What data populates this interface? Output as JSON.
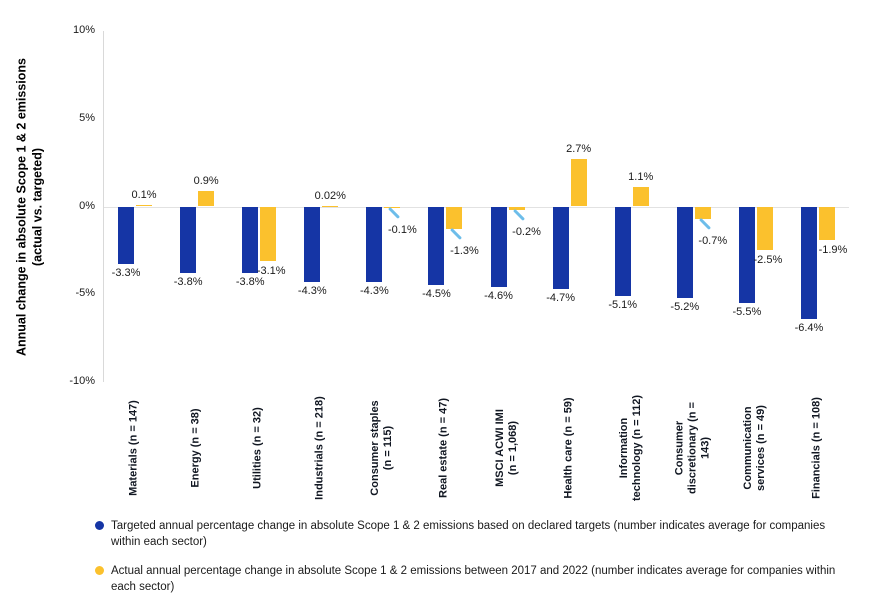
{
  "chart_data": {
    "type": "bar",
    "title": "",
    "xlabel": "",
    "ylabel": "Annual change in absolute Scope 1 & 2 emissions (actual vs. targeted)",
    "y_axis_title_lines": [
      "Annual change in absolute Scope 1 & 2 emissions",
      "(actual vs. targeted)"
    ],
    "ylim": [
      -10,
      10
    ],
    "grid": "zero-line-only",
    "legend_position": "bottom-left",
    "yticks": [
      {
        "value": 10,
        "label": "10%"
      },
      {
        "value": 5,
        "label": "5%"
      },
      {
        "value": 0,
        "label": "0%"
      },
      {
        "value": -5,
        "label": "-5%"
      },
      {
        "value": -10,
        "label": "-10%"
      }
    ],
    "series": [
      {
        "name": "Targeted",
        "color": "#1535A5"
      },
      {
        "name": "Actual",
        "color": "#FBC12D"
      }
    ],
    "colors": {
      "targeted": "#1535A5",
      "actual": "#FBC12D",
      "callout_line": "#6DBDEA",
      "axis": "#D9D9D9",
      "text": "#1A1A1A"
    },
    "categories": [
      {
        "label_lines": [
          "Materials (n = 147)"
        ],
        "targeted": -3.3,
        "targeted_label": "-3.3%",
        "actual": 0.1,
        "actual_label": "0.1%",
        "actual_label_pos": "above"
      },
      {
        "label_lines": [
          "Energy (n = 38)"
        ],
        "targeted": -3.8,
        "targeted_label": "-3.8%",
        "actual": 0.9,
        "actual_label": "0.9%",
        "actual_label_pos": "above"
      },
      {
        "label_lines": [
          "Utilities (n = 32)"
        ],
        "targeted": -3.8,
        "targeted_label": "-3.8%",
        "actual": -3.1,
        "actual_label": "-3.1%",
        "actual_label_pos": "below"
      },
      {
        "label_lines": [
          "Industrials (n = 218)"
        ],
        "targeted": -4.3,
        "targeted_label": "-4.3%",
        "actual": 0.02,
        "actual_label": "0.02%",
        "actual_label_pos": "above"
      },
      {
        "label_lines": [
          "Consumer staples",
          "(n = 115)"
        ],
        "targeted": -4.3,
        "targeted_label": "-4.3%",
        "actual": -0.1,
        "actual_label": "-0.1%",
        "actual_label_pos": "callout"
      },
      {
        "label_lines": [
          "Real estate (n = 47)"
        ],
        "targeted": -4.5,
        "targeted_label": "-4.5%",
        "actual": -1.3,
        "actual_label": "-1.3%",
        "actual_label_pos": "callout"
      },
      {
        "label_lines": [
          "MSCI ACWI IMI",
          "(n = 1,068)"
        ],
        "targeted": -4.6,
        "targeted_label": "-4.6%",
        "actual": -0.2,
        "actual_label": "-0.2%",
        "actual_label_pos": "callout"
      },
      {
        "label_lines": [
          "Health care (n = 59)"
        ],
        "targeted": -4.7,
        "targeted_label": "-4.7%",
        "actual": 2.7,
        "actual_label": "2.7%",
        "actual_label_pos": "above"
      },
      {
        "label_lines": [
          "Information",
          "technology (n = 112)"
        ],
        "targeted": -5.1,
        "targeted_label": "-5.1%",
        "actual": 1.1,
        "actual_label": "1.1%",
        "actual_label_pos": "above"
      },
      {
        "label_lines": [
          "Consumer",
          "discretionary (n = 143)"
        ],
        "targeted": -5.2,
        "targeted_label": "-5.2%",
        "actual": -0.7,
        "actual_label": "-0.7%",
        "actual_label_pos": "callout"
      },
      {
        "label_lines": [
          "Communication",
          "services (n = 49)"
        ],
        "targeted": -5.5,
        "targeted_label": "-5.5%",
        "actual": -2.5,
        "actual_label": "-2.5%",
        "actual_label_pos": "below"
      },
      {
        "label_lines": [
          "Financials (n = 108)"
        ],
        "targeted": -6.4,
        "targeted_label": "-6.4%",
        "actual": -1.9,
        "actual_label": "-1.9%",
        "actual_label_pos": "right-bottom"
      }
    ],
    "legend": [
      {
        "marker_color": "#1535A5",
        "text": "Targeted annual percentage change in absolute Scope 1 & 2 emissions based on declared targets (number indicates average for companies within each sector)"
      },
      {
        "marker_color": "#FBC12D",
        "text": "Actual annual percentage change in absolute Scope 1 & 2 emissions between 2017 and 2022 (number indicates average for companies within each sector)"
      }
    ]
  }
}
